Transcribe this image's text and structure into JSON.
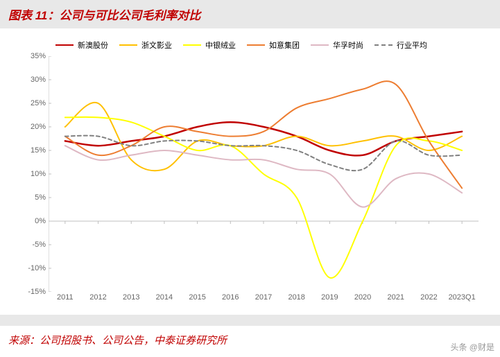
{
  "title": "图表 11：公司与可比公司毛利率对比",
  "source": "来源：公司招股书、公司公告，中泰证券研究所",
  "watermark": "头条 @财是",
  "chart": {
    "type": "line",
    "background_color": "#ffffff",
    "grid_color": "#d9d9d9",
    "axis_color": "#bfbfbf",
    "label_color": "#666666",
    "label_fontsize": 11,
    "ylim": [
      -15,
      35
    ],
    "ytick_step": 5,
    "yticks": [
      35,
      30,
      25,
      20,
      15,
      10,
      5,
      0,
      -5,
      -10,
      -15
    ],
    "ytick_labels": [
      "35%",
      "30%",
      "25%",
      "20%",
      "15%",
      "10%",
      "5%",
      "0%",
      "-5%",
      "-10%",
      "-15%"
    ],
    "categories": [
      "2011",
      "2012",
      "2013",
      "2014",
      "2015",
      "2016",
      "2017",
      "2018",
      "2019",
      "2020",
      "2021",
      "2022",
      "2023Q1"
    ],
    "series": [
      {
        "name": "新澳股份",
        "color": "#c00000",
        "width": 2.5,
        "dash": "none",
        "values": [
          17,
          16,
          17,
          18,
          20,
          21,
          20,
          18,
          15,
          14,
          17,
          18,
          19
        ]
      },
      {
        "name": "浙文影业",
        "color": "#ffc000",
        "width": 2,
        "dash": "none",
        "values": [
          20,
          25,
          13,
          11,
          17,
          16,
          16,
          18,
          16,
          17,
          18,
          15,
          18
        ]
      },
      {
        "name": "中银绒业",
        "color": "#ffff00",
        "width": 2,
        "dash": "none",
        "values": [
          22,
          22,
          21,
          18,
          15,
          16,
          10,
          5,
          -12,
          0,
          16,
          17,
          15
        ]
      },
      {
        "name": "如意集团",
        "color": "#ed7d31",
        "width": 2,
        "dash": "none",
        "values": [
          18,
          14,
          16,
          20,
          19,
          18,
          19,
          24,
          26,
          28,
          29,
          17,
          7
        ]
      },
      {
        "name": "华孚时尚",
        "color": "#deb8c3",
        "width": 2,
        "dash": "none",
        "values": [
          16,
          13,
          14,
          15,
          14,
          13,
          13,
          11,
          10,
          3,
          9,
          10,
          6
        ]
      },
      {
        "name": "行业平均",
        "color": "#808080",
        "width": 2,
        "dash": "5,4",
        "values": [
          18,
          18,
          16,
          17,
          17,
          16,
          16,
          15,
          12,
          11,
          17,
          14,
          14
        ]
      }
    ]
  }
}
